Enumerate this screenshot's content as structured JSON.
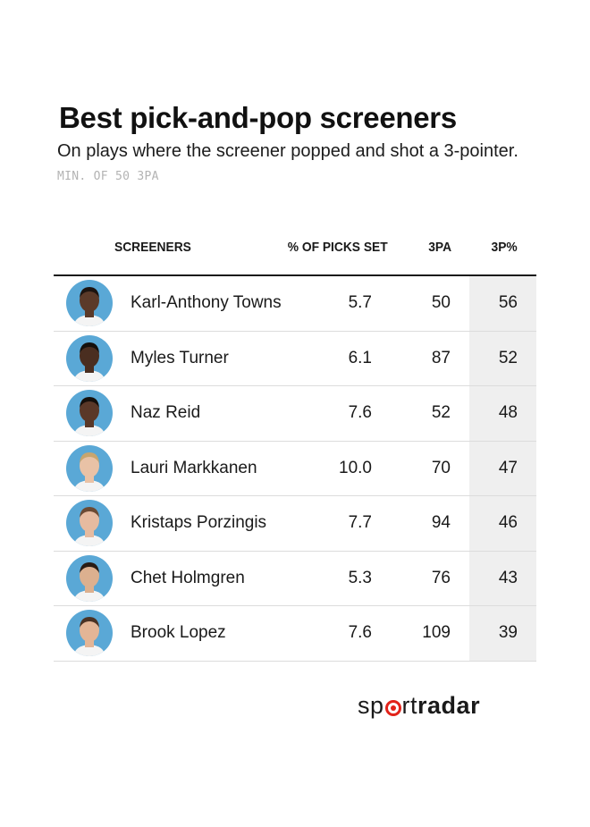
{
  "title": "Best pick-and-pop screeners",
  "subtitle": "On plays where the screener popped and shot a 3-pointer.",
  "note": "MIN. OF 50 3PA",
  "columns": {
    "screeners": "SCREENERS",
    "picks": "% OF PICKS SET",
    "attempts": "3PA",
    "pct": "3P%"
  },
  "rows": [
    {
      "name": "Karl-Anthony Towns",
      "picks": "5.7",
      "attempts": "50",
      "pct": "56",
      "skin": "#5b3a29",
      "hair": "#1c1410"
    },
    {
      "name": "Myles Turner",
      "picks": "6.1",
      "attempts": "87",
      "pct": "52",
      "skin": "#4a2e20",
      "hair": "#15100c"
    },
    {
      "name": "Naz Reid",
      "picks": "7.6",
      "attempts": "52",
      "pct": "48",
      "skin": "#5a3828",
      "hair": "#140f0b"
    },
    {
      "name": "Lauri Markkanen",
      "picks": "10.0",
      "attempts": "70",
      "pct": "47",
      "skin": "#e9c2a6",
      "hair": "#c8a56e"
    },
    {
      "name": "Kristaps Porzingis",
      "picks": "7.7",
      "attempts": "94",
      "pct": "46",
      "skin": "#e6bba0",
      "hair": "#6b4a33"
    },
    {
      "name": "Chet Holmgren",
      "picks": "5.3",
      "attempts": "76",
      "pct": "43",
      "skin": "#dcb08f",
      "hair": "#2a1c14"
    },
    {
      "name": "Brook Lopez",
      "picks": "7.6",
      "attempts": "109",
      "pct": "39",
      "skin": "#e3b596",
      "hair": "#4a3224"
    }
  ],
  "logo": {
    "part1": "sp",
    "part2": "rt",
    "part3": "radar",
    "accent": "#e2231a"
  },
  "colors": {
    "avatar_bg": "#5aa8d6",
    "highlight_col": "#efefef"
  }
}
